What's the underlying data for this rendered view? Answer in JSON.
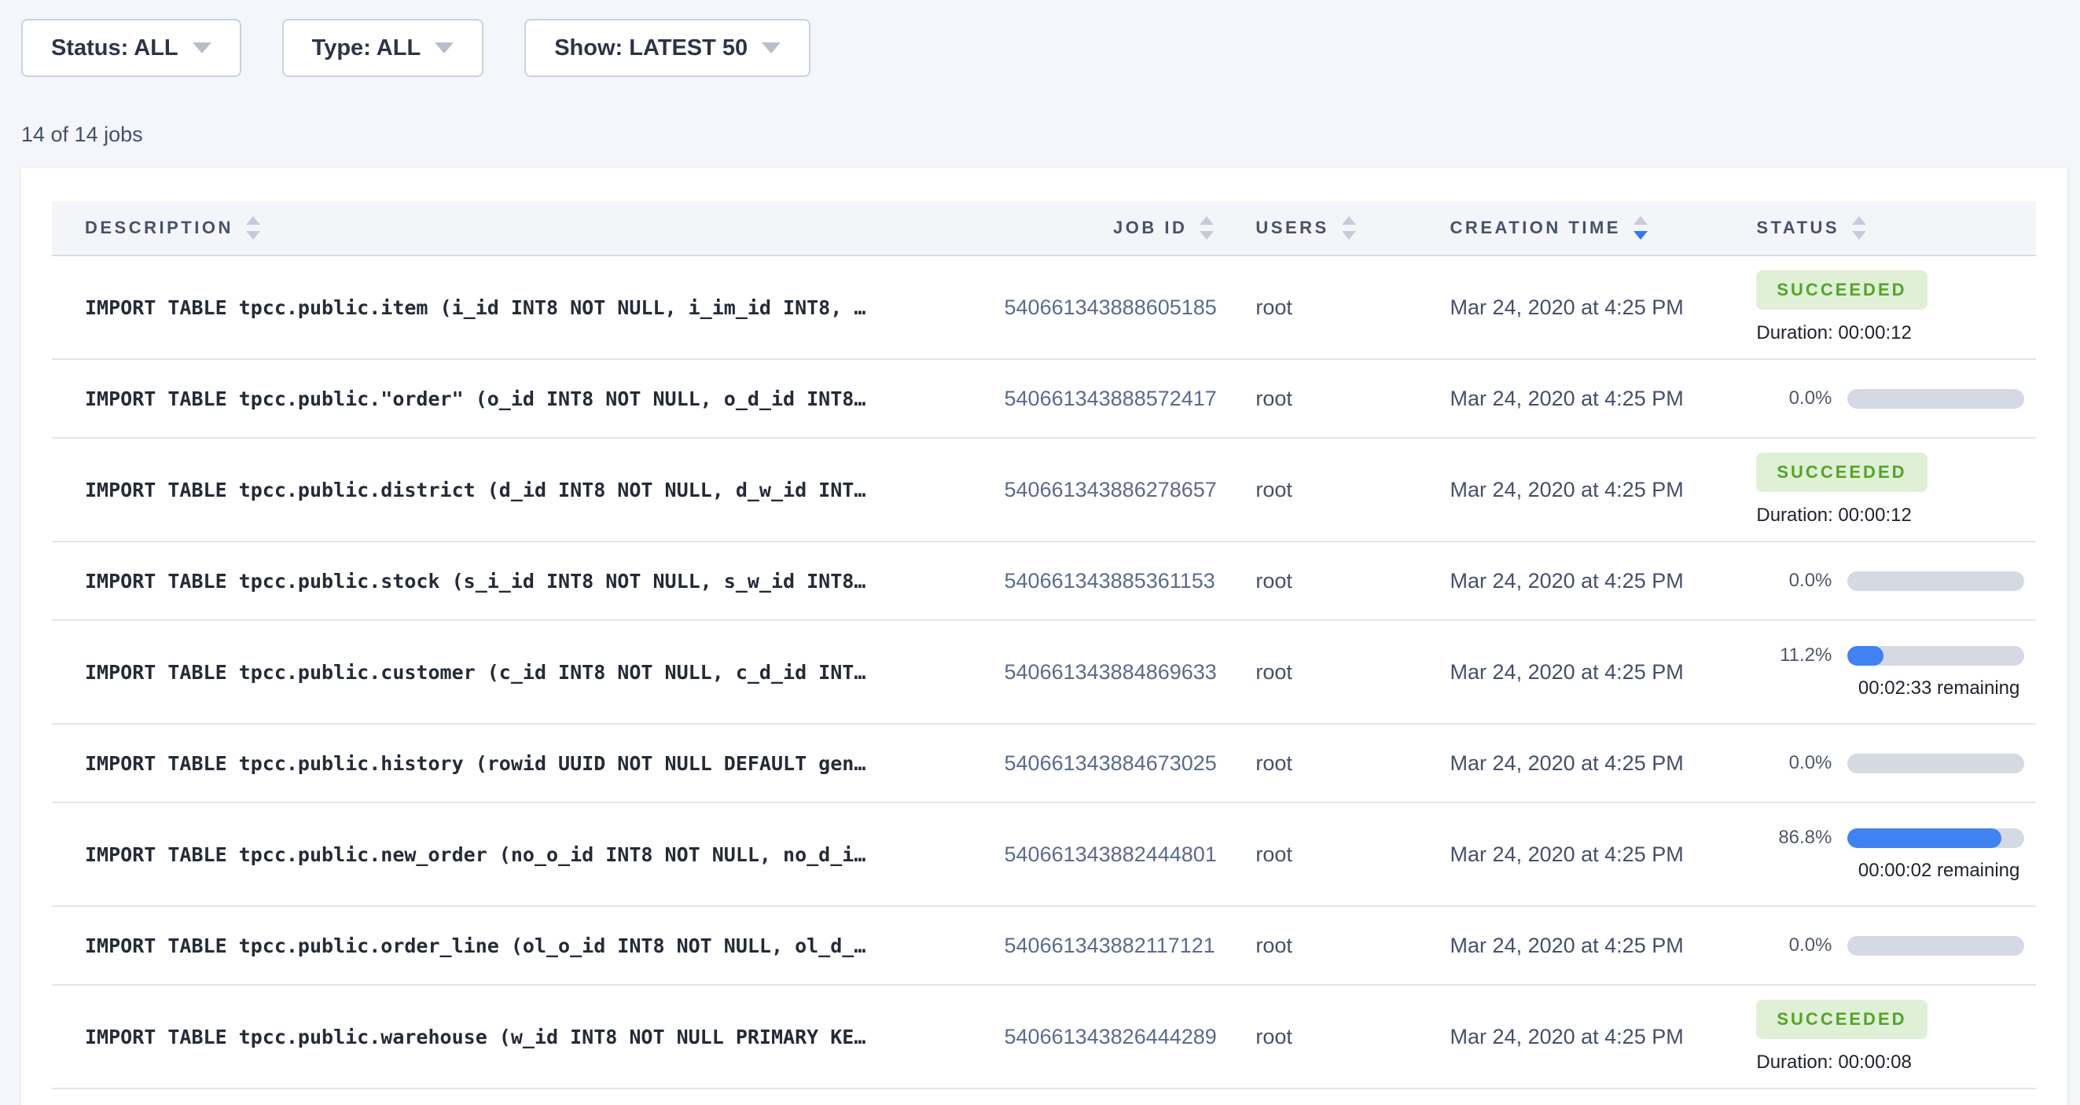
{
  "filters": {
    "status_label": "Status: ALL",
    "type_label": "Type: ALL",
    "show_label": "Show: LATEST 50"
  },
  "summary": "14 of 14 jobs",
  "table": {
    "columns": [
      {
        "label": "DESCRIPTION",
        "sort": "none"
      },
      {
        "label": "JOB ID",
        "sort": "none"
      },
      {
        "label": "USERS",
        "sort": "none"
      },
      {
        "label": "CREATION TIME",
        "sort": "desc"
      },
      {
        "label": "STATUS",
        "sort": "none"
      }
    ],
    "rows": [
      {
        "description": "IMPORT TABLE tpcc.public.item (i_id INT8 NOT NULL, i_im_id INT8, …",
        "job_id": "540661343888605185",
        "user": "root",
        "creation_time": "Mar 24, 2020 at 4:25 PM",
        "status": {
          "type": "succeeded",
          "label": "SUCCEEDED",
          "duration": "Duration: 00:00:12"
        }
      },
      {
        "description": "IMPORT TABLE tpcc.public.\"order\" (o_id INT8 NOT NULL, o_d_id INT8…",
        "job_id": "540661343888572417",
        "user": "root",
        "creation_time": "Mar 24, 2020 at 4:25 PM",
        "status": {
          "type": "progress",
          "percent_label": "0.0%",
          "percent": 0,
          "remaining": ""
        }
      },
      {
        "description": "IMPORT TABLE tpcc.public.district (d_id INT8 NOT NULL, d_w_id INT…",
        "job_id": "540661343886278657",
        "user": "root",
        "creation_time": "Mar 24, 2020 at 4:25 PM",
        "status": {
          "type": "succeeded",
          "label": "SUCCEEDED",
          "duration": "Duration: 00:00:12"
        }
      },
      {
        "description": "IMPORT TABLE tpcc.public.stock (s_i_id INT8 NOT NULL, s_w_id INT8…",
        "job_id": "540661343885361153",
        "user": "root",
        "creation_time": "Mar 24, 2020 at 4:25 PM",
        "status": {
          "type": "progress",
          "percent_label": "0.0%",
          "percent": 0,
          "remaining": ""
        }
      },
      {
        "description": "IMPORT TABLE tpcc.public.customer (c_id INT8 NOT NULL, c_d_id INT…",
        "job_id": "540661343884869633",
        "user": "root",
        "creation_time": "Mar 24, 2020 at 4:25 PM",
        "status": {
          "type": "progress",
          "percent_label": "11.2%",
          "percent": 11.2,
          "remaining": "00:02:33 remaining"
        }
      },
      {
        "description": "IMPORT TABLE tpcc.public.history (rowid UUID NOT NULL DEFAULT gen…",
        "job_id": "540661343884673025",
        "user": "root",
        "creation_time": "Mar 24, 2020 at 4:25 PM",
        "status": {
          "type": "progress",
          "percent_label": "0.0%",
          "percent": 0,
          "remaining": ""
        }
      },
      {
        "description": "IMPORT TABLE tpcc.public.new_order (no_o_id INT8 NOT NULL, no_d_i…",
        "job_id": "540661343882444801",
        "user": "root",
        "creation_time": "Mar 24, 2020 at 4:25 PM",
        "status": {
          "type": "progress",
          "percent_label": "86.8%",
          "percent": 86.8,
          "remaining": "00:00:02 remaining"
        }
      },
      {
        "description": "IMPORT TABLE tpcc.public.order_line (ol_o_id INT8 NOT NULL, ol_d_…",
        "job_id": "540661343882117121",
        "user": "root",
        "creation_time": "Mar 24, 2020 at 4:25 PM",
        "status": {
          "type": "progress",
          "percent_label": "0.0%",
          "percent": 0,
          "remaining": ""
        }
      },
      {
        "description": "IMPORT TABLE tpcc.public.warehouse (w_id INT8 NOT NULL PRIMARY KE…",
        "job_id": "540661343826444289",
        "user": "root",
        "creation_time": "Mar 24, 2020 at 4:25 PM",
        "status": {
          "type": "succeeded",
          "label": "SUCCEEDED",
          "duration": "Duration: 00:00:08"
        }
      }
    ]
  },
  "colors": {
    "progress_fill": "#3f83f2",
    "progress_track": "#d4d9e3",
    "badge_bg": "#dff0d7",
    "badge_text": "#55a327",
    "sort_active": "#2f7af0"
  }
}
